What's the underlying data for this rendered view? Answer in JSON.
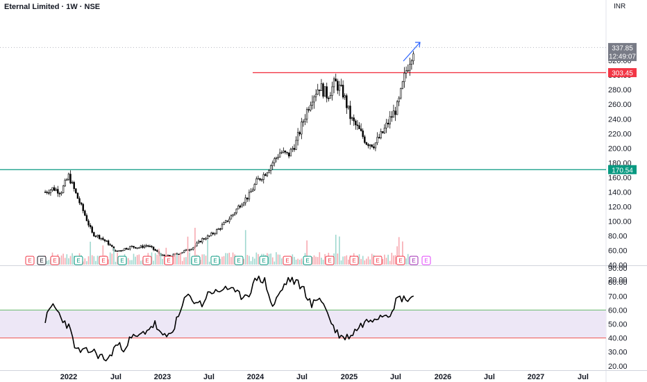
{
  "header": {
    "title": "Eternal Limited · 1W · NSE",
    "currency": "INR"
  },
  "colors": {
    "up": "#089981",
    "down": "#f23645",
    "candle": "#000000",
    "resistance": "#f23645",
    "support": "#089981",
    "rsi_line": "#000000",
    "rsi_band": "#ede7f6",
    "rsi_upper": "#66bb6a",
    "rsi_lower": "#ef5350",
    "arrow": "#2962ff",
    "event_dividend": "#e040fb"
  },
  "price_panel": {
    "y_ticks": [
      "320.00",
      "300.00",
      "280.00",
      "260.00",
      "240.00",
      "220.00",
      "200.00",
      "180.00",
      "160.00",
      "140.00",
      "120.00",
      "100.00",
      "80.00",
      "60.00",
      "40.00",
      "20.00"
    ],
    "last_price": "337.85",
    "countdown": "12:49:07",
    "resistance_label": "303.45",
    "support_label": "170.54"
  },
  "rsi_panel": {
    "y_ticks": [
      "90.00",
      "80.00",
      "70.00",
      "60.00",
      "50.00",
      "40.00",
      "30.00",
      "20.00"
    ],
    "upper_band": 60,
    "lower_band": 40
  },
  "x_axis": {
    "ticks": [
      "2022",
      "Jul",
      "2023",
      "Jul",
      "2024",
      "Jul",
      "2025",
      "Jul",
      "2026",
      "Jul",
      "2027",
      "Jul"
    ]
  },
  "events": [
    "E",
    "E",
    "E",
    "E",
    "E",
    "E",
    "E",
    "E",
    "E",
    "E",
    "E",
    "E",
    "E",
    "E",
    "E",
    "E",
    "E",
    "E",
    "E",
    "E",
    "E",
    "E",
    "E",
    "E"
  ],
  "chart_data": {
    "type": "candlestick",
    "x_label": "Week",
    "close_series": {
      "dates": [
        "2021-10",
        "2021-11",
        "2021-12",
        "2022-01",
        "2022-02",
        "2022-03",
        "2022-04",
        "2022-05",
        "2022-06",
        "2022-07",
        "2022-08",
        "2022-09",
        "2022-10",
        "2022-11",
        "2022-12",
        "2023-01",
        "2023-02",
        "2023-03",
        "2023-04",
        "2023-05",
        "2023-06",
        "2023-07",
        "2023-08",
        "2023-09",
        "2023-10",
        "2023-11",
        "2023-12",
        "2024-01",
        "2024-02",
        "2024-03",
        "2024-04",
        "2024-05",
        "2024-06",
        "2024-07",
        "2024-08",
        "2024-09",
        "2024-10",
        "2024-11",
        "2024-12",
        "2025-01",
        "2025-02",
        "2025-03",
        "2025-04",
        "2025-05",
        "2025-06",
        "2025-07",
        "2025-08",
        "2025-09"
      ],
      "values": [
        140,
        145,
        140,
        162,
        135,
        110,
        83,
        78,
        70,
        58,
        62,
        65,
        64,
        67,
        60,
        52,
        52,
        56,
        60,
        65,
        75,
        80,
        88,
        98,
        110,
        125,
        135,
        155,
        165,
        180,
        195,
        190,
        208,
        240,
        270,
        285,
        272,
        290,
        275,
        240,
        225,
        208,
        205,
        220,
        240,
        258,
        305,
        337.85
      ],
      "ylim": [
        20,
        340
      ]
    },
    "rsi": {
      "name": "RSI",
      "dates": [
        "2021-10",
        "2021-11",
        "2021-12",
        "2022-01",
        "2022-02",
        "2022-03",
        "2022-04",
        "2022-05",
        "2022-06",
        "2022-07",
        "2022-08",
        "2022-09",
        "2022-10",
        "2022-11",
        "2022-12",
        "2023-01",
        "2023-02",
        "2023-03",
        "2023-04",
        "2023-05",
        "2023-06",
        "2023-07",
        "2023-08",
        "2023-09",
        "2023-10",
        "2023-11",
        "2023-12",
        "2024-01",
        "2024-02",
        "2024-03",
        "2024-04",
        "2024-05",
        "2024-06",
        "2024-07",
        "2024-08",
        "2024-09",
        "2024-10",
        "2024-11",
        "2024-12",
        "2025-01",
        "2025-02",
        "2025-03",
        "2025-04",
        "2025-05",
        "2025-06",
        "2025-07",
        "2025-08",
        "2025-09"
      ],
      "values": [
        53,
        64,
        55,
        48,
        31,
        30,
        31,
        27,
        24,
        35,
        33,
        40,
        41,
        46,
        50,
        40,
        43,
        55,
        70,
        67,
        64,
        74,
        72,
        77,
        73,
        70,
        72,
        83,
        81,
        62,
        73,
        82,
        80,
        75,
        63,
        70,
        58,
        45,
        40,
        42,
        48,
        52,
        55,
        57,
        58,
        69,
        68,
        70
      ],
      "ylim": [
        20,
        90
      ],
      "bands": [
        60,
        40
      ]
    },
    "levels": [
      {
        "name": "resistance",
        "value": 303.45
      },
      {
        "name": "support",
        "value": 170.54
      }
    ],
    "last_price": 337.85
  }
}
